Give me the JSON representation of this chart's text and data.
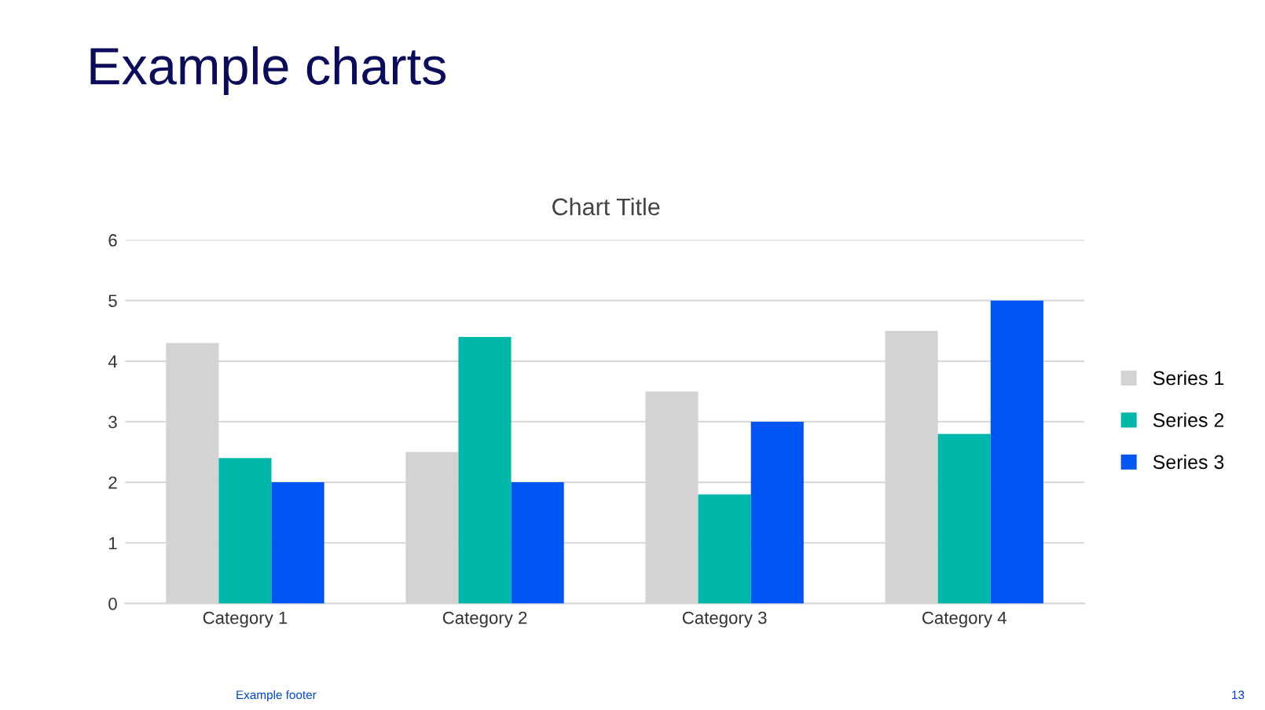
{
  "chart_data": {
    "type": "bar",
    "title": "Example charts",
    "subtitle": "Chart Title",
    "categories": [
      "Category 1",
      "Category 2",
      "Category 3",
      "Category 4"
    ],
    "series": [
      {
        "name": "Series 1",
        "color": "#d3d3d3",
        "values": [
          4.3,
          2.5,
          3.5,
          4.5
        ]
      },
      {
        "name": "Series 2",
        "color": "#00b8a9",
        "values": [
          2.4,
          4.4,
          1.8,
          2.8
        ]
      },
      {
        "name": "Series 3",
        "color": "#0055f5",
        "values": [
          2,
          2,
          3,
          5
        ]
      }
    ],
    "ylim": [
      0,
      6
    ],
    "yticks": [
      0,
      1,
      2,
      3,
      4,
      5,
      6
    ],
    "grid": "y",
    "legend": "right",
    "annotations": [
      "Example footer",
      "13"
    ]
  }
}
